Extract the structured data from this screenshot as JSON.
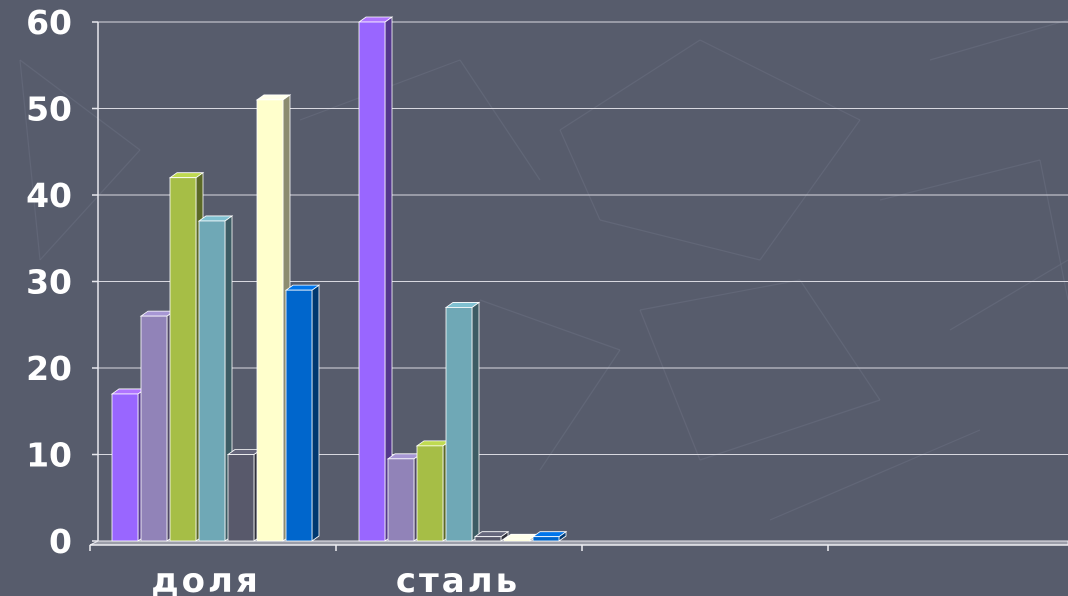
{
  "chart_data": {
    "type": "bar",
    "title": "",
    "xlabel": "",
    "ylabel": "",
    "categories": [
      "доля",
      "сталь",
      "",
      ""
    ],
    "ylim": [
      0,
      60
    ],
    "yticks": [
      0,
      10,
      20,
      30,
      40,
      50,
      60
    ],
    "grid": true,
    "legend": "none",
    "series": [
      {
        "color": "#9966ff",
        "values": [
          17,
          60,
          null,
          null
        ]
      },
      {
        "color": "#9183b8",
        "values": [
          26,
          9.5,
          null,
          null
        ]
      },
      {
        "color": "#a6be46",
        "values": [
          42,
          11,
          null,
          null
        ]
      },
      {
        "color": "#6fa8b6",
        "values": [
          37,
          27,
          null,
          null
        ]
      },
      {
        "color": "#58596b",
        "values": [
          10,
          0.5,
          null,
          null
        ]
      },
      {
        "color": "#ffffcc",
        "values": [
          51,
          0.2,
          null,
          null
        ]
      },
      {
        "color": "#0066cc",
        "values": [
          29,
          0.5,
          null,
          null
        ]
      }
    ]
  }
}
